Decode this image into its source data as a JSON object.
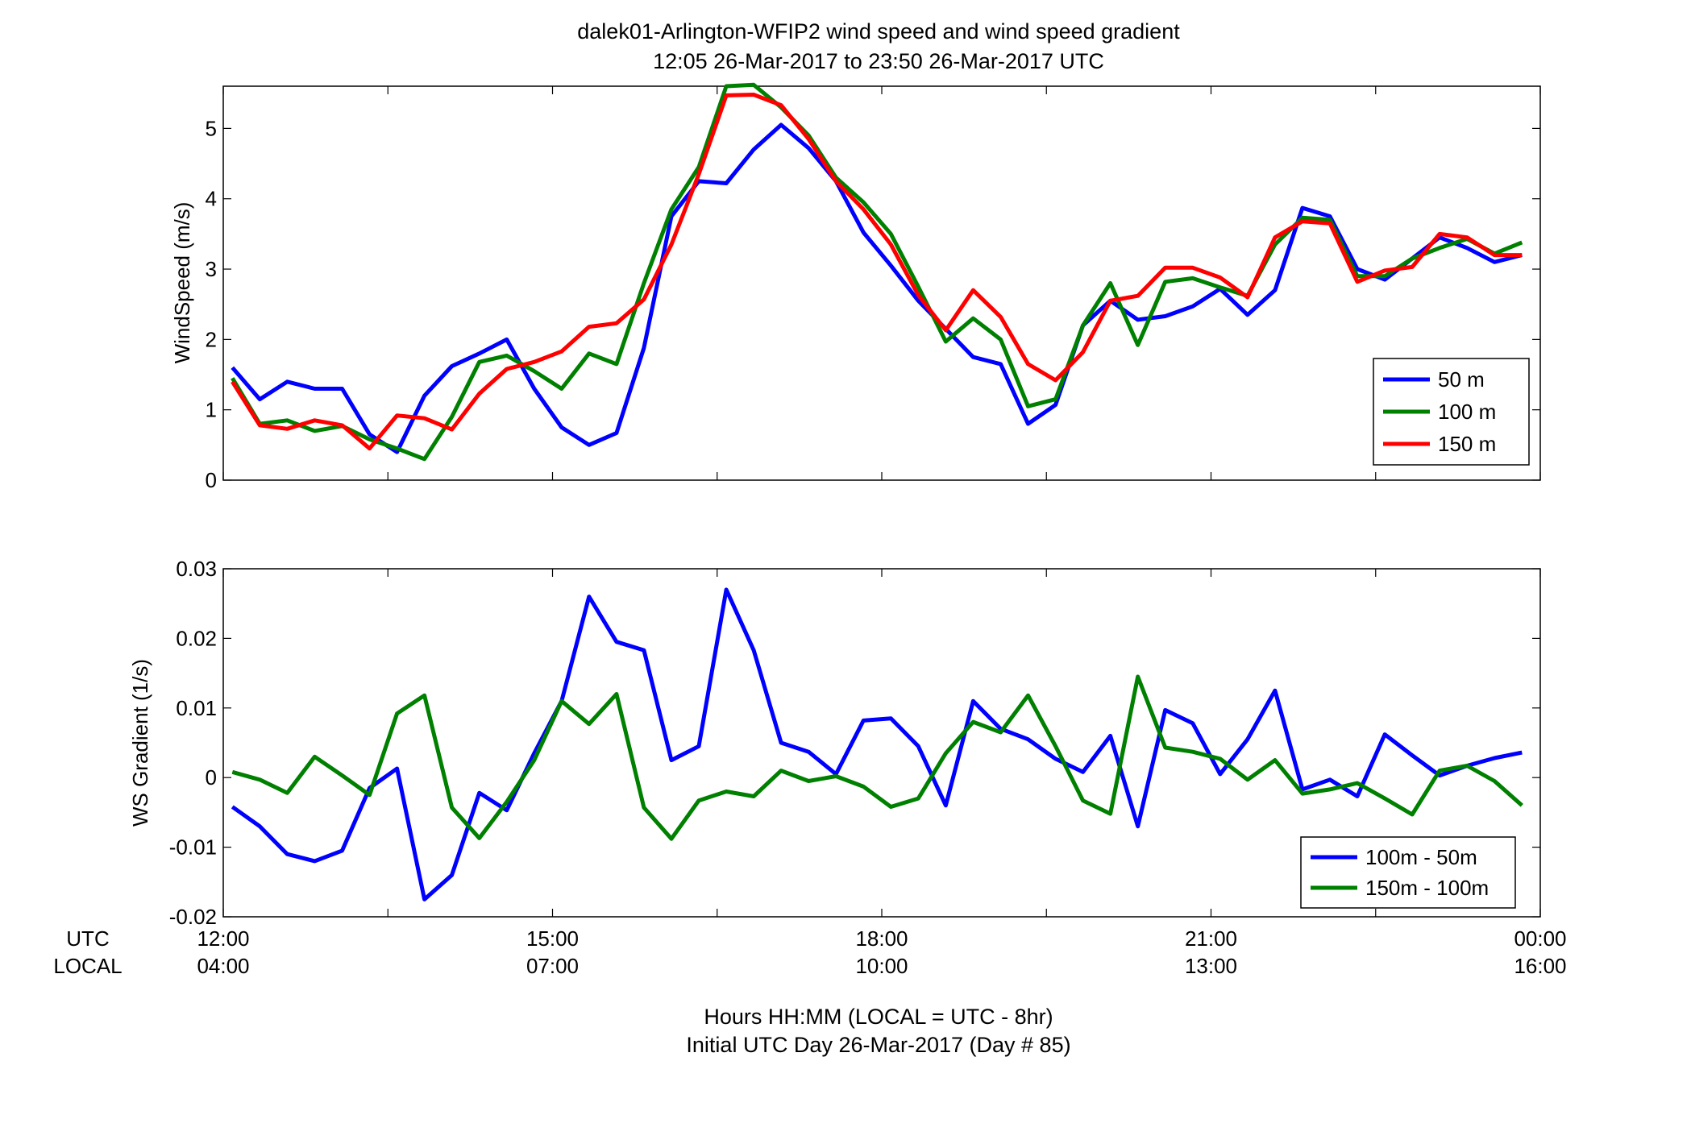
{
  "title": {
    "line1": "dalek01-Arlington-WFIP2  wind speed and wind speed gradient",
    "line2": "12:05 26-Mar-2017 to 23:50 26-Mar-2017  UTC"
  },
  "xaxis": {
    "row1_label": "UTC",
    "row2_label": "LOCAL",
    "utc_ticks": [
      "12:00",
      "15:00",
      "18:00",
      "21:00",
      "00:00"
    ],
    "local_ticks": [
      "04:00",
      "07:00",
      "10:00",
      "13:00",
      "16:00"
    ],
    "label_line1": "Hours HH:MM  (LOCAL = UTC - 8hr)",
    "label_line2": "Initial UTC Day 26-Mar-2017 (Day # 85)"
  },
  "colors": {
    "blue": "#0000ff",
    "green": "#008000",
    "red": "#ff0000"
  },
  "chart_data": [
    {
      "type": "line",
      "ylabel": "WindSpeed (m/s)",
      "xlim": [
        12,
        24
      ],
      "ylim": [
        0,
        5.6
      ],
      "yticks": [
        "0",
        "1",
        "2",
        "3",
        "4",
        "5"
      ],
      "grid": false,
      "legend_position": "bottom-right",
      "x": [
        12.083,
        12.333,
        12.583,
        12.833,
        13.083,
        13.333,
        13.583,
        13.833,
        14.083,
        14.333,
        14.583,
        14.833,
        15.083,
        15.333,
        15.583,
        15.833,
        16.083,
        16.333,
        16.583,
        16.833,
        17.083,
        17.333,
        17.583,
        17.833,
        18.083,
        18.333,
        18.583,
        18.833,
        19.083,
        19.333,
        19.583,
        19.833,
        20.083,
        20.333,
        20.583,
        20.833,
        21.083,
        21.333,
        21.583,
        21.833,
        22.083,
        22.333,
        22.583,
        22.833,
        23.083,
        23.333,
        23.583,
        23.833
      ],
      "series": [
        {
          "name": "50 m",
          "color": "#0000ff",
          "values": [
            1.6,
            1.15,
            1.4,
            1.3,
            1.3,
            0.65,
            0.4,
            1.2,
            1.62,
            1.8,
            2.0,
            1.3,
            0.75,
            0.5,
            0.67,
            1.88,
            3.75,
            4.25,
            4.22,
            4.7,
            5.05,
            4.72,
            4.25,
            3.52,
            3.05,
            2.55,
            2.15,
            1.75,
            1.65,
            0.8,
            1.07,
            2.2,
            2.55,
            2.28,
            2.33,
            2.47,
            2.72,
            2.35,
            2.7,
            3.87,
            3.75,
            3.0,
            2.85,
            3.15,
            3.45,
            3.3,
            3.1,
            3.2
          ]
        },
        {
          "name": "100 m",
          "color": "#008000",
          "values": [
            1.45,
            0.8,
            0.85,
            0.7,
            0.77,
            0.58,
            0.45,
            0.3,
            0.9,
            1.68,
            1.77,
            1.55,
            1.3,
            1.8,
            1.65,
            2.8,
            3.85,
            4.45,
            5.6,
            5.62,
            5.3,
            4.9,
            4.3,
            3.95,
            3.5,
            2.75,
            1.97,
            2.3,
            2.0,
            1.05,
            1.15,
            2.2,
            2.8,
            1.92,
            2.82,
            2.87,
            2.74,
            2.62,
            3.35,
            3.73,
            3.7,
            2.9,
            2.9,
            3.15,
            3.3,
            3.43,
            3.22,
            3.38
          ]
        },
        {
          "name": "150 m",
          "color": "#ff0000",
          "values": [
            1.4,
            0.78,
            0.73,
            0.85,
            0.78,
            0.45,
            0.92,
            0.88,
            0.72,
            1.23,
            1.58,
            1.68,
            1.83,
            2.18,
            2.23,
            2.57,
            3.35,
            4.35,
            5.47,
            5.48,
            5.33,
            4.85,
            4.25,
            3.85,
            3.35,
            2.63,
            2.13,
            2.7,
            2.32,
            1.65,
            1.42,
            1.82,
            2.55,
            2.62,
            3.02,
            3.02,
            2.88,
            2.6,
            3.45,
            3.68,
            3.65,
            2.82,
            2.98,
            3.03,
            3.5,
            3.45,
            3.2,
            3.2
          ]
        }
      ]
    },
    {
      "type": "line",
      "ylabel": "WS Gradient (1/s)",
      "xlim": [
        12,
        24
      ],
      "ylim": [
        -0.02,
        0.03
      ],
      "yticks": [
        "-0.02",
        "-0.01",
        "0",
        "0.01",
        "0.02",
        "0.03"
      ],
      "grid": false,
      "legend_position": "bottom-right",
      "x": [
        12.083,
        12.333,
        12.583,
        12.833,
        13.083,
        13.333,
        13.583,
        13.833,
        14.083,
        14.333,
        14.583,
        14.833,
        15.083,
        15.333,
        15.583,
        15.833,
        16.083,
        16.333,
        16.583,
        16.833,
        17.083,
        17.333,
        17.583,
        17.833,
        18.083,
        18.333,
        18.583,
        18.833,
        19.083,
        19.333,
        19.583,
        19.833,
        20.083,
        20.333,
        20.583,
        20.833,
        21.083,
        21.333,
        21.583,
        21.833,
        22.083,
        22.333,
        22.583,
        22.833,
        23.083,
        23.333,
        23.583,
        23.833
      ],
      "series": [
        {
          "name": "100m - 50m",
          "color": "#0000ff",
          "values": [
            -0.0042,
            -0.007,
            -0.011,
            -0.012,
            -0.0105,
            -0.0015,
            0.0013,
            -0.0175,
            -0.014,
            -0.0022,
            -0.0047,
            0.0035,
            0.011,
            0.026,
            0.0195,
            0.0183,
            0.0025,
            0.0045,
            0.027,
            0.0183,
            0.005,
            0.0037,
            0.0005,
            0.0082,
            0.0085,
            0.0045,
            -0.004,
            0.011,
            0.007,
            0.0055,
            0.0027,
            0.0008,
            0.006,
            -0.007,
            0.0097,
            0.0078,
            0.0005,
            0.0055,
            0.0125,
            -0.0017,
            -0.0003,
            -0.0027,
            0.0062,
            0.0032,
            0.0003,
            0.0017,
            0.0028,
            0.0036
          ]
        },
        {
          "name": "150m - 100m",
          "color": "#008000",
          "values": [
            0.0008,
            -0.0003,
            -0.0022,
            0.003,
            0.0003,
            -0.0025,
            0.0092,
            0.0118,
            -0.0043,
            -0.0087,
            -0.0035,
            0.0025,
            0.011,
            0.0077,
            0.012,
            -0.0043,
            -0.0088,
            -0.0033,
            -0.002,
            -0.0027,
            0.001,
            -0.0005,
            0.0002,
            -0.0013,
            -0.0042,
            -0.003,
            0.0035,
            0.008,
            0.0065,
            0.0118,
            0.0045,
            -0.0033,
            -0.0052,
            0.0145,
            0.0043,
            0.0037,
            0.0027,
            -0.0003,
            0.0025,
            -0.0023,
            -0.0017,
            -0.0008,
            -0.003,
            -0.0053,
            0.001,
            0.0017,
            -0.0005,
            -0.004
          ]
        }
      ]
    }
  ]
}
